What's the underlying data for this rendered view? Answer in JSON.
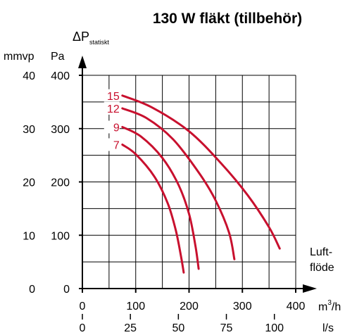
{
  "chart_data": {
    "type": "line",
    "title": "130 W fläkt (tillbehör)",
    "y_axis": {
      "label_main": "ΔP",
      "label_sub": "statiskt",
      "unit_left": "mmvp",
      "unit_right": "Pa",
      "ticks_pa": [
        0,
        100,
        200,
        300,
        400
      ],
      "ticks_mmvp": [
        0,
        10,
        20,
        30,
        40
      ],
      "ylim": [
        0,
        400
      ]
    },
    "x_axis": {
      "label_line1": "Luft-",
      "label_line2": "flöde",
      "unit_primary": "m³/h",
      "unit_primary_base": "m",
      "unit_primary_sup": "3",
      "unit_primary_tail": "/h",
      "unit_secondary": "l/s",
      "ticks_m3h": [
        0,
        100,
        200,
        300,
        400
      ],
      "ticks_ls": [
        0,
        25,
        50,
        75,
        100
      ],
      "xlim": [
        0,
        400
      ]
    },
    "grid": true,
    "curve_color": "#c8102e",
    "series": [
      {
        "name": "15",
        "points": [
          [
            75,
            362
          ],
          [
            130,
            340
          ],
          [
            200,
            295
          ],
          [
            260,
            235
          ],
          [
            310,
            175
          ],
          [
            350,
            115
          ],
          [
            370,
            75
          ]
        ]
      },
      {
        "name": "12",
        "points": [
          [
            75,
            338
          ],
          [
            120,
            320
          ],
          [
            170,
            280
          ],
          [
            220,
            215
          ],
          [
            250,
            165
          ],
          [
            275,
            105
          ],
          [
            285,
            55
          ]
        ]
      },
      {
        "name": "9",
        "points": [
          [
            75,
            303
          ],
          [
            110,
            285
          ],
          [
            150,
            245
          ],
          [
            180,
            195
          ],
          [
            200,
            140
          ],
          [
            212,
            80
          ],
          [
            218,
            37
          ]
        ]
      },
      {
        "name": "7",
        "points": [
          [
            75,
            270
          ],
          [
            100,
            252
          ],
          [
            135,
            210
          ],
          [
            160,
            160
          ],
          [
            175,
            110
          ],
          [
            185,
            60
          ],
          [
            190,
            30
          ]
        ]
      }
    ]
  }
}
